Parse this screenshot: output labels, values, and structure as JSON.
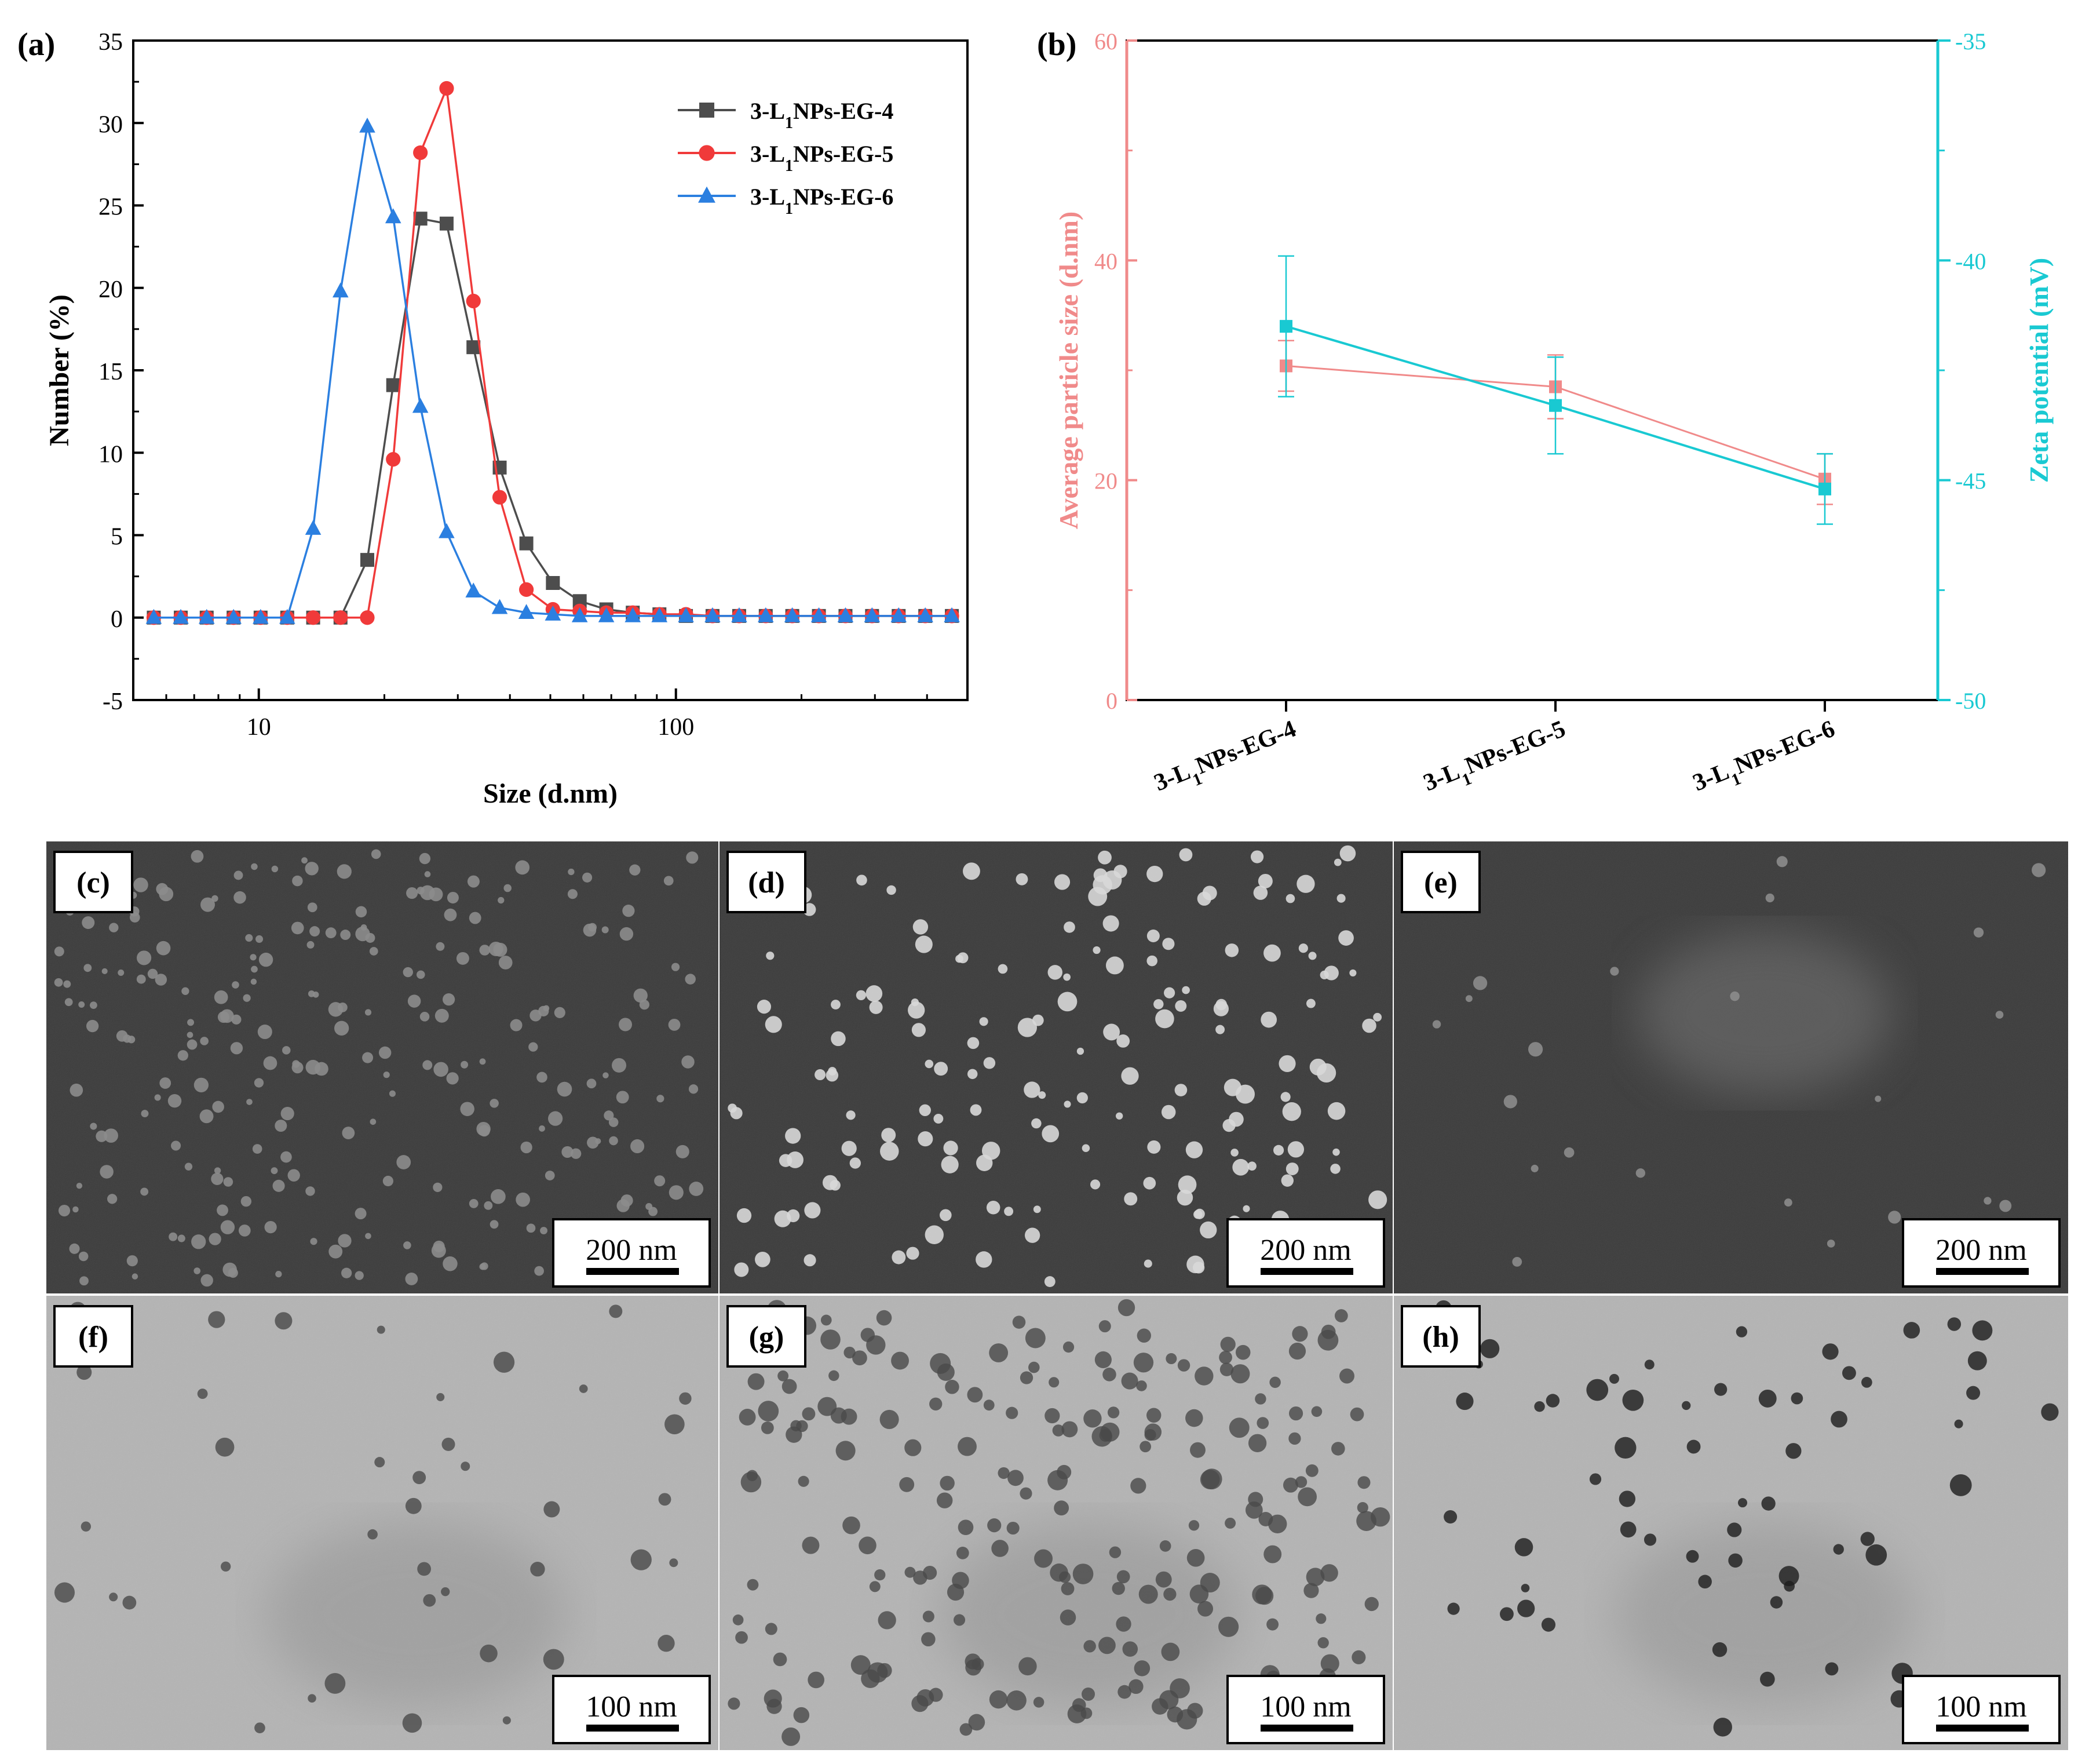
{
  "colors": {
    "black": "#000000",
    "series_eg4": "#4d4d4d",
    "series_eg5": "#f03a3a",
    "series_eg6": "#2b7fe0",
    "size_pink": "#f08a8a",
    "zeta_cyan": "#19c9d2",
    "sem_bg": "#3b3b3b",
    "tem_bg": "#b4b4b4"
  },
  "chart_data": [
    {
      "id": "a",
      "panel_label": "(a)",
      "type": "line",
      "xlabel": "Size (d.nm)",
      "ylabel": "Number (%)",
      "x_scale": "log",
      "xlim": [
        5,
        500
      ],
      "ylim": [
        -5,
        35
      ],
      "x_ticks": [
        10,
        100
      ],
      "x_tick_labels": [
        "10",
        "100"
      ],
      "y_ticks": [
        -5,
        0,
        5,
        10,
        15,
        20,
        25,
        30,
        35
      ],
      "legend_position": "top-right",
      "x": [
        5.6,
        6.5,
        7.5,
        8.7,
        10.1,
        11.7,
        13.5,
        15.7,
        18.2,
        21.0,
        24.4,
        28.2,
        32.7,
        37.8,
        43.8,
        50.7,
        58.8,
        68.1,
        78.8,
        91.3,
        105.7,
        122.4,
        141.8,
        164.2,
        190.1,
        220.2,
        255.0,
        295.3,
        342.0,
        396.1,
        458.7
      ],
      "series": [
        {
          "name": "3-L1NPs-EG-4",
          "marker": "square",
          "values": [
            0,
            0,
            0,
            0,
            0,
            0,
            0,
            0,
            3.5,
            14.1,
            24.2,
            23.9,
            16.4,
            9.1,
            4.5,
            2.1,
            1.0,
            0.5,
            0.3,
            0.2,
            0.1,
            0.1,
            0.1,
            0.1,
            0.1,
            0.1,
            0.1,
            0.1,
            0.1,
            0.1,
            0.1
          ]
        },
        {
          "name": "3-L1NPs-EG-5",
          "marker": "circle",
          "values": [
            0,
            0,
            0,
            0,
            0,
            0,
            0,
            0,
            0,
            9.6,
            28.2,
            32.1,
            19.2,
            7.3,
            1.7,
            0.5,
            0.4,
            0.3,
            0.3,
            0.2,
            0.2,
            0.1,
            0.1,
            0.1,
            0.1,
            0.1,
            0.1,
            0.1,
            0.1,
            0.1,
            0.1
          ]
        },
        {
          "name": "3-L1NPs-EG-6",
          "marker": "triangle",
          "values": [
            0,
            0,
            0,
            0,
            0,
            0,
            5.4,
            19.8,
            29.8,
            24.3,
            12.8,
            5.2,
            1.6,
            0.6,
            0.3,
            0.2,
            0.1,
            0.1,
            0.1,
            0.1,
            0.1,
            0.1,
            0.1,
            0.1,
            0.1,
            0.1,
            0.1,
            0.1,
            0.1,
            0.1,
            0.1
          ]
        }
      ]
    },
    {
      "id": "b",
      "panel_label": "(b)",
      "type": "line",
      "categories": [
        "3-L1NPs-EG-4",
        "3-L1NPs-EG-5",
        "3-L1NPs-EG-6"
      ],
      "ylabel_left": "Average particle size (d.nm)",
      "ylabel_right": "Zeta potential (mV)",
      "ylim_left": [
        0,
        60
      ],
      "ylim_right": [
        -50,
        -35
      ],
      "y_ticks_left": [
        0,
        20,
        40,
        60
      ],
      "y_ticks_right": [
        -50,
        -45,
        -40,
        -35
      ],
      "series": [
        {
          "axis": "left",
          "values": [
            30.4,
            28.5,
            20.1
          ],
          "error": [
            2.3,
            2.9,
            2.3
          ]
        },
        {
          "axis": "right",
          "values": [
            -41.5,
            -43.3,
            -45.2
          ],
          "error": [
            1.6,
            1.1,
            0.8
          ]
        }
      ]
    }
  ],
  "micrographs": [
    {
      "label": "(c)",
      "scale": "200 nm"
    },
    {
      "label": "(d)",
      "scale": "200 nm"
    },
    {
      "label": "(e)",
      "scale": "200 nm"
    },
    {
      "label": "(f)",
      "scale": "100 nm"
    },
    {
      "label": "(g)",
      "scale": "100 nm"
    },
    {
      "label": "(h)",
      "scale": "100 nm"
    }
  ]
}
